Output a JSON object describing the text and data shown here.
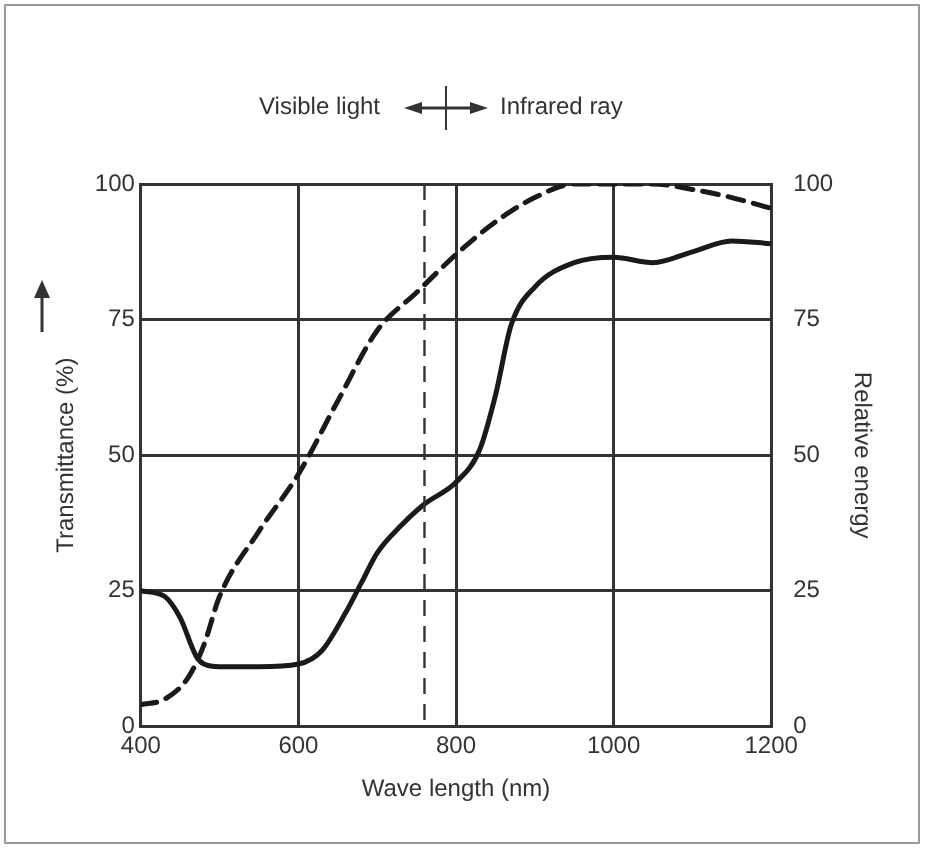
{
  "chart_data": {
    "type": "line",
    "xlabel": "Wave length (nm)",
    "ylabel": "Transmittance (%)",
    "y2label": "Relative energy",
    "annotations": [
      "Visible light",
      "Infrared ray"
    ],
    "xlim": [
      400,
      1200
    ],
    "xticks": [
      400,
      600,
      800,
      1000,
      1200
    ],
    "ylim": [
      0,
      100
    ],
    "yticks": [
      0,
      25,
      50,
      75,
      100
    ],
    "y2lim": [
      0,
      100
    ],
    "y2ticks": [
      0,
      25,
      50,
      75,
      100
    ],
    "series": [
      {
        "color": "#1a1a1a",
        "line_style": "solid",
        "x": [
          400,
          430,
          450,
          470,
          480,
          500,
          550,
          600,
          630,
          660,
          680,
          700,
          730,
          760,
          800,
          830,
          850,
          870,
          900,
          950,
          1000,
          1050,
          1100,
          1150,
          1200
        ],
        "values": [
          25,
          24,
          20,
          13,
          11.5,
          11,
          11,
          11.5,
          14,
          21,
          26.5,
          32,
          37,
          41,
          45,
          51,
          61,
          74,
          81,
          85.5,
          86.5,
          85.5,
          87.5,
          89.5,
          89
        ]
      },
      {
        "color": "#1a1a1a",
        "line_style": "dashed",
        "axis": "y2",
        "x": [
          400,
          430,
          460,
          480,
          500,
          550,
          600,
          650,
          700,
          750,
          800,
          850,
          900,
          950,
          1050,
          1100,
          1150,
          1200
        ],
        "values": [
          4,
          5,
          9,
          15,
          24,
          36,
          46.5,
          60,
          73,
          80,
          87,
          93,
          97.5,
          100,
          100,
          99,
          97.5,
          95.5
        ]
      }
    ],
    "ref_lines": [
      {
        "axis": "x",
        "value": 760,
        "line_style": "dashed",
        "color": "#333333"
      }
    ],
    "grid": true,
    "legend": false,
    "marker": "none"
  }
}
